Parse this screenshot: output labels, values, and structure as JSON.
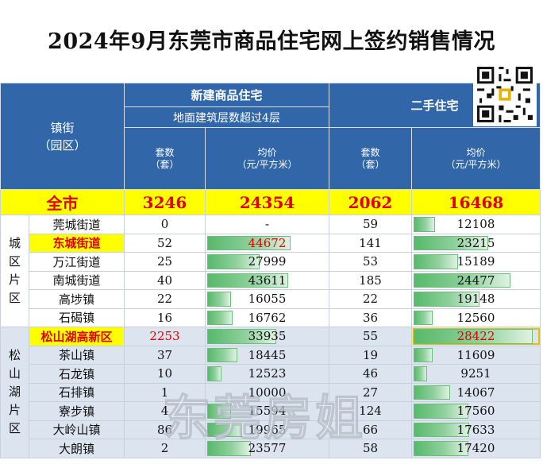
{
  "title": "2024年9月东莞市商品住宅网上签约销售情况",
  "header": {
    "town_label": "镇街",
    "town_sub": "（园区）",
    "new_housing": "新建商品住宅",
    "new_housing_sub": "地面建筑层数超过4层",
    "second_hand": "二手住宅",
    "units_label": "套数",
    "units_unit": "（套）",
    "price_label": "均价",
    "price_unit": "（元/平方米）"
  },
  "total": {
    "name": "全市",
    "new_units": "3246",
    "new_price": "24354",
    "sh_units": "2062",
    "sh_price": "16468"
  },
  "groups": [
    {
      "area": "城区片区",
      "rows": [
        {
          "name": "莞城街道",
          "new_units": "0",
          "new_price": "-",
          "new_ratio": 0,
          "sh_units": "59",
          "sh_price": "12108",
          "sh_ratio": 0.12
        },
        {
          "name": "东城街道",
          "new_units": "52",
          "new_price": "44672",
          "new_ratio": 0.68,
          "sh_units": "141",
          "sh_price": "23215",
          "sh_ratio": 0.6
        },
        {
          "name": "万江街道",
          "new_units": "25",
          "new_price": "27999",
          "new_ratio": 0.4,
          "sh_units": "53",
          "sh_price": "15189",
          "sh_ratio": 0.33
        },
        {
          "name": "南城街道",
          "new_units": "40",
          "new_price": "43611",
          "new_ratio": 0.66,
          "sh_units": "185",
          "sh_price": "24477",
          "sh_ratio": 0.8
        },
        {
          "name": "高埗镇",
          "new_units": "22",
          "new_price": "16055",
          "new_ratio": 0.14,
          "sh_units": "22",
          "sh_price": "19148",
          "sh_ratio": 0.52
        },
        {
          "name": "石碣镇",
          "new_units": "16",
          "new_price": "16762",
          "new_ratio": 0.16,
          "sh_units": "36",
          "sh_price": "12560",
          "sh_ratio": 0.1
        }
      ]
    },
    {
      "area": "松山湖片区",
      "rows": [
        {
          "name": "松山湖高新区",
          "new_units": "2253",
          "new_price": "33935",
          "new_ratio": 0.55,
          "sh_units": "55",
          "sh_price": "28422",
          "sh_ratio": 1.0
        },
        {
          "name": "茶山镇",
          "new_units": "37",
          "new_price": "18445",
          "new_ratio": 0.2,
          "sh_units": "19",
          "sh_price": "11609",
          "sh_ratio": 0.1
        },
        {
          "name": "石龙镇",
          "new_units": "10",
          "new_price": "12523",
          "new_ratio": 0.06,
          "sh_units": "46",
          "sh_price": "9251",
          "sh_ratio": 0.05
        },
        {
          "name": "石排镇",
          "new_units": "1",
          "new_price": "10000",
          "new_ratio": 0.0,
          "sh_units": "27",
          "sh_price": "14067",
          "sh_ratio": 0.26
        },
        {
          "name": "寮步镇",
          "new_units": "4",
          "new_price": "15594",
          "new_ratio": 0.14,
          "sh_units": "124",
          "sh_price": "17560",
          "sh_ratio": 0.42
        },
        {
          "name": "大岭山镇",
          "new_units": "86",
          "new_price": "19965",
          "new_ratio": 0.24,
          "sh_units": "66",
          "sh_price": "17633",
          "sh_ratio": 0.43
        },
        {
          "name": "大朗镇",
          "new_units": "2",
          "new_price": "23577",
          "new_ratio": 0.32,
          "sh_units": "58",
          "sh_price": "17420",
          "sh_ratio": 0.42
        }
      ]
    }
  ],
  "highlight_names": [
    "东城街道",
    "松山湖高新区"
  ],
  "watermark": "东莞房姐",
  "colors": {
    "header_blue": "#3167a8",
    "total_yellow": "#ffff00",
    "accent_red": "#e00000",
    "bar_green": "#57b96b",
    "group_band": "#dbe4ef"
  }
}
